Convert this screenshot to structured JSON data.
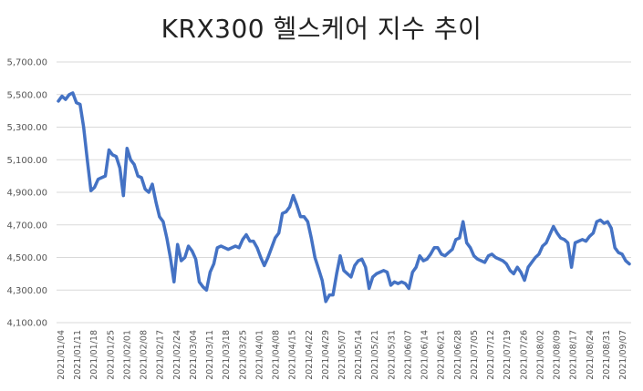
{
  "chart_data": {
    "type": "line",
    "title": "KRX300 헬스케어 지수 추이",
    "xlabel": "",
    "ylabel": "",
    "ylim": [
      4100,
      5700
    ],
    "yticks": [
      "4,100.00",
      "4,300.00",
      "4,500.00",
      "4,700.00",
      "4,900.00",
      "5,100.00",
      "5,300.00",
      "5,500.00",
      "5,700.00"
    ],
    "ytick_values": [
      4100,
      4300,
      4500,
      4700,
      4900,
      5100,
      5300,
      5500,
      5700
    ],
    "xticks": [
      "2021/01/04",
      "2021/01/11",
      "2021/01/18",
      "2021/01/25",
      "2021/02/01",
      "2021/02/08",
      "2021/02/17",
      "2021/02/24",
      "2021/03/04",
      "2021/03/11",
      "2021/03/18",
      "2021/03/25",
      "2021/04/01",
      "2021/04/08",
      "2021/04/15",
      "2021/04/22",
      "2021/04/29",
      "2021/05/07",
      "2021/05/14",
      "2021/05/21",
      "2021/05/31",
      "2021/06/07",
      "2021/06/14",
      "2021/06/21",
      "2021/06/28",
      "2021/07/05",
      "2021/07/12",
      "2021/07/19",
      "2021/07/26",
      "2021/08/02",
      "2021/08/09",
      "2021/08/17",
      "2021/08/24",
      "2021/08/31",
      "2021/09/07"
    ],
    "grid": true,
    "line_color": "#4472C4",
    "series": [
      {
        "values": [
          5460,
          5490,
          5470,
          5500,
          5510,
          5450,
          5440,
          5300,
          5100,
          4910,
          4930,
          4980,
          4990,
          5000,
          5160,
          5130,
          5120,
          5050,
          4880,
          5170,
          5100,
          5070,
          5000,
          4990,
          4920,
          4900,
          4950,
          4840,
          4750,
          4720,
          4620,
          4500,
          4350,
          4580,
          4480,
          4500,
          4570,
          4540,
          4490,
          4350,
          4320,
          4300,
          4410,
          4460,
          4560,
          4570,
          4560,
          4550,
          4560,
          4570,
          4560,
          4610,
          4640,
          4600,
          4600,
          4560,
          4500,
          4450,
          4500,
          4560,
          4620,
          4650,
          4770,
          4780,
          4810,
          4880,
          4820,
          4750,
          4750,
          4720,
          4620,
          4500,
          4430,
          4360,
          4230,
          4270,
          4270,
          4400,
          4510,
          4420,
          4400,
          4380,
          4450,
          4480,
          4490,
          4440,
          4310,
          4380,
          4400,
          4410,
          4420,
          4410,
          4330,
          4350,
          4340,
          4350,
          4340,
          4310,
          4410,
          4440,
          4510,
          4480,
          4490,
          4520,
          4560,
          4560,
          4520,
          4510,
          4530,
          4550,
          4610,
          4620,
          4720,
          4590,
          4560,
          4510,
          4490,
          4480,
          4470,
          4510,
          4520,
          4500,
          4490,
          4480,
          4460,
          4420,
          4400,
          4440,
          4410,
          4360,
          4440,
          4470,
          4500,
          4520,
          4570,
          4590,
          4640,
          4690,
          4650,
          4620,
          4610,
          4590,
          4440,
          4590,
          4600,
          4610,
          4600,
          4630,
          4650,
          4720,
          4730,
          4710,
          4720,
          4680,
          4560,
          4530,
          4520,
          4480,
          4460
        ]
      }
    ]
  }
}
